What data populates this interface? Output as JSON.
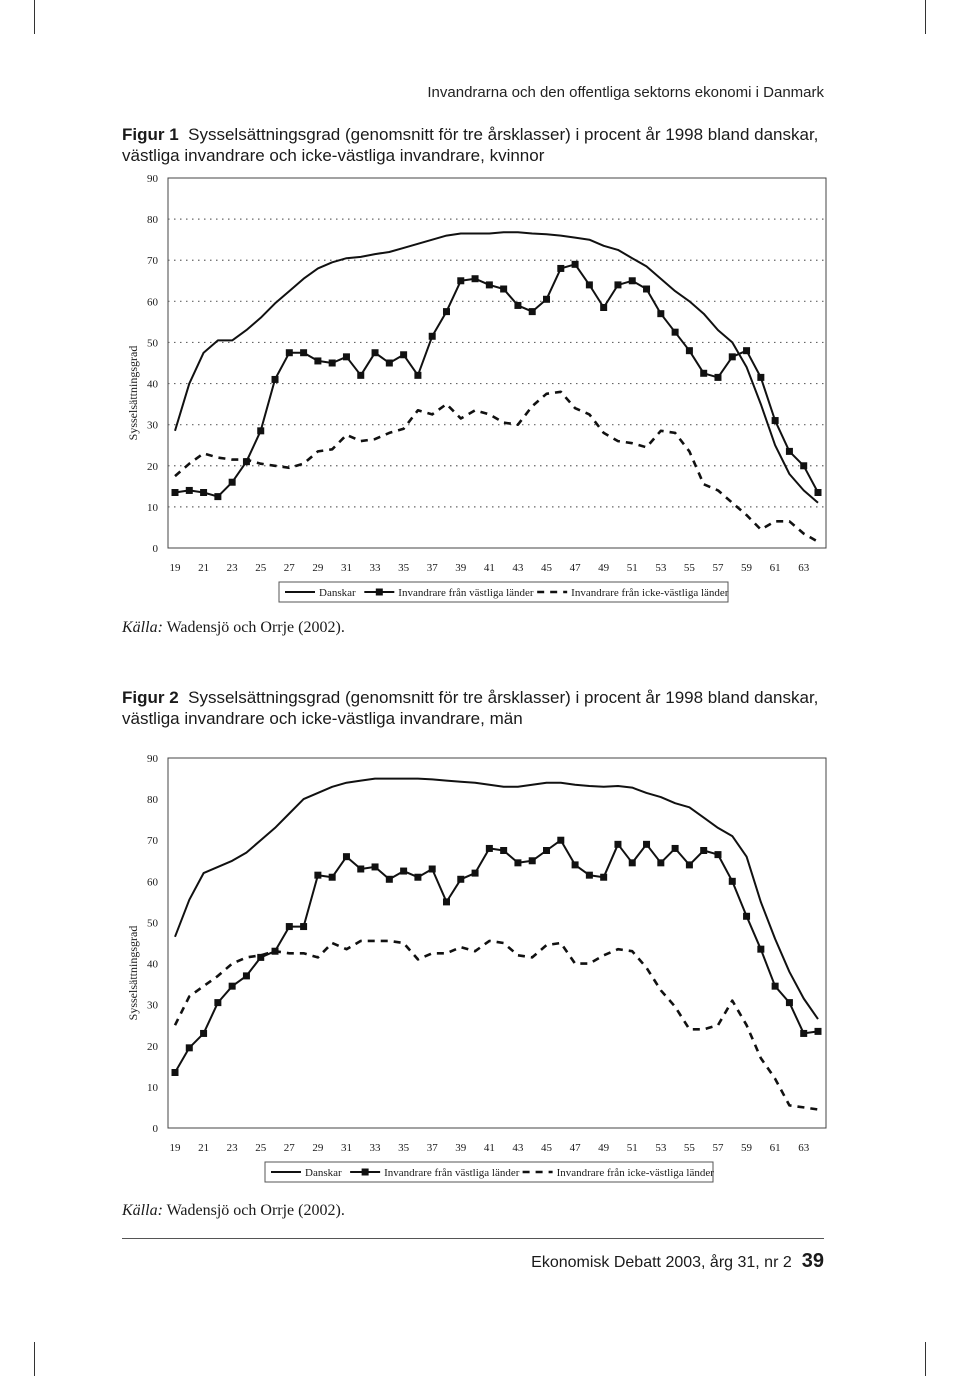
{
  "running_head": "Invandrarna och den offentliga sektorns ekonomi i Danmark",
  "figures": [
    {
      "label": "Figur 1",
      "caption": "Sysselsättningsgrad (genomsnitt för tre årsklasser) i procent år 1998 bland danskar, västliga invandrare och icke-västliga invandrare, kvinnor",
      "source_label": "Källa:",
      "source_text": " Wadensjö och Orrje (2002)."
    },
    {
      "label": "Figur 2",
      "caption": "Sysselsättningsgrad (genomsnitt för tre årsklasser) i procent år 1998 bland danskar, västliga invandrare och icke-västliga invandrare, män",
      "source_label": "Källa:",
      "source_text": " Wadensjö och Orrje (2002)."
    }
  ],
  "footer": {
    "journal": "Ekonomisk Debatt 2003, årg 31, nr 2",
    "page": "39"
  },
  "chart_data": [
    {
      "type": "line",
      "ylabel": "Sysselsättningsgrad",
      "ylim": [
        0,
        90
      ],
      "yticks": [
        0,
        10,
        20,
        30,
        40,
        50,
        60,
        70,
        80,
        90
      ],
      "xlim": [
        19,
        64
      ],
      "xticks": [
        19,
        21,
        23,
        25,
        27,
        29,
        31,
        33,
        35,
        37,
        39,
        41,
        43,
        45,
        47,
        49,
        51,
        53,
        55,
        57,
        59,
        61,
        63
      ],
      "x": [
        19,
        20,
        21,
        22,
        23,
        24,
        25,
        26,
        27,
        28,
        29,
        30,
        31,
        32,
        33,
        34,
        35,
        36,
        37,
        38,
        39,
        40,
        41,
        42,
        43,
        44,
        45,
        46,
        47,
        48,
        49,
        50,
        51,
        52,
        53,
        54,
        55,
        56,
        57,
        58,
        59,
        60,
        61,
        62,
        63,
        64
      ],
      "grid": "dotted-horizontal",
      "legend_position": "bottom",
      "series": [
        {
          "name": "Danskar",
          "style": "solid",
          "values": [
            28.5,
            40,
            47.5,
            50.5,
            50.5,
            53,
            56,
            59.5,
            62.5,
            65.5,
            68,
            69.5,
            70.5,
            70.8,
            71.5,
            72,
            73,
            74,
            75,
            76,
            76.5,
            76.5,
            76.5,
            76.8,
            76.8,
            76.5,
            76.3,
            76,
            75.5,
            75,
            73.5,
            72.5,
            70.5,
            68.5,
            65.5,
            62.5,
            60,
            57,
            53,
            50,
            44,
            35,
            25,
            18,
            14,
            11
          ]
        },
        {
          "name": "Invandrare från västliga länder",
          "style": "solid-square",
          "values": [
            13.5,
            14,
            13.5,
            12.5,
            16,
            21,
            28.5,
            41,
            47.5,
            47.5,
            45.5,
            45,
            46.5,
            42,
            47.5,
            45,
            47,
            42,
            51.5,
            57.5,
            65,
            65.5,
            64,
            63,
            59,
            57.5,
            60.5,
            68,
            69,
            64,
            58.5,
            64,
            65,
            63,
            57,
            52.5,
            48,
            42.5,
            41.5,
            46.5,
            48,
            41.5,
            31,
            23.5,
            20,
            13.5
          ]
        },
        {
          "name": "Invandrare från icke-västliga länder",
          "style": "dashed",
          "values": [
            17.5,
            20.5,
            23,
            22,
            21.5,
            21.5,
            20.5,
            20,
            19.5,
            20.5,
            23.5,
            24,
            27.5,
            26,
            26.5,
            28,
            29,
            33.5,
            32.5,
            35,
            31.5,
            33.5,
            32.5,
            30.5,
            30,
            34.5,
            37.5,
            38,
            34,
            32.5,
            28,
            26,
            25.5,
            24.5,
            28.5,
            28,
            23.5,
            15.5,
            14,
            11,
            8,
            4.5,
            6.5,
            6.5,
            3.5,
            1.5
          ]
        }
      ]
    },
    {
      "type": "line",
      "ylabel": "Sysselsättningsgrad",
      "ylim": [
        0,
        90
      ],
      "yticks": [
        0,
        10,
        20,
        30,
        40,
        50,
        60,
        70,
        80,
        90
      ],
      "xlim": [
        19,
        64
      ],
      "xticks": [
        19,
        21,
        23,
        25,
        27,
        29,
        31,
        33,
        35,
        37,
        39,
        41,
        43,
        45,
        47,
        49,
        51,
        53,
        55,
        57,
        59,
        61,
        63
      ],
      "x": [
        19,
        20,
        21,
        22,
        23,
        24,
        25,
        26,
        27,
        28,
        29,
        30,
        31,
        32,
        33,
        34,
        35,
        36,
        37,
        38,
        39,
        40,
        41,
        42,
        43,
        44,
        45,
        46,
        47,
        48,
        49,
        50,
        51,
        52,
        53,
        54,
        55,
        56,
        57,
        58,
        59,
        60,
        61,
        62,
        63,
        64
      ],
      "grid": "none",
      "legend_position": "bottom",
      "series": [
        {
          "name": "Danskar",
          "style": "solid",
          "values": [
            46.5,
            55.5,
            62,
            63.5,
            65,
            67,
            70,
            73,
            76.5,
            80,
            81.5,
            83,
            84,
            84.5,
            85,
            85,
            85,
            85,
            84.8,
            84.5,
            84.2,
            84,
            83.5,
            83,
            83,
            83.5,
            84,
            84,
            83.5,
            83.2,
            83,
            83.2,
            82.8,
            81.5,
            80.5,
            79,
            78,
            75.5,
            73,
            71,
            66,
            55,
            46,
            38,
            31.5,
            26.5
          ]
        },
        {
          "name": "Invandrare från västliga länder",
          "style": "solid-square",
          "values": [
            13.5,
            19.5,
            23,
            30.5,
            34.5,
            37,
            41.5,
            43,
            49,
            49,
            61.5,
            61,
            66,
            63,
            63.5,
            60.5,
            62.5,
            61,
            63,
            55,
            60.5,
            62,
            68,
            67.5,
            64.5,
            65,
            67.5,
            70,
            64,
            61.5,
            61,
            69,
            64.5,
            69,
            64.5,
            68,
            64,
            67.5,
            66.5,
            60,
            51.5,
            43.5,
            34.5,
            30.5,
            23,
            23.5
          ]
        },
        {
          "name": "Invandrare från icke-västliga länder",
          "style": "dashed",
          "values": [
            25,
            32,
            34.5,
            37,
            40,
            41.5,
            42,
            43,
            42.5,
            42.5,
            41.5,
            45,
            43.5,
            45.5,
            45.5,
            45.5,
            45,
            41,
            42.5,
            42.5,
            44,
            43,
            45.5,
            45,
            42,
            41.5,
            44.5,
            45,
            40,
            40,
            42,
            43.5,
            43,
            39,
            33.5,
            29.5,
            24,
            24,
            25,
            31,
            25,
            17,
            12,
            5.5,
            5,
            4.5
          ]
        }
      ]
    }
  ]
}
